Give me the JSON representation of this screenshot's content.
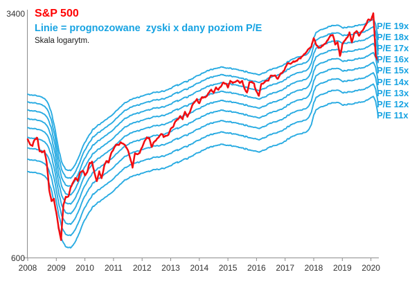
{
  "chart_data": {
    "type": "line",
    "scale": "log",
    "title": "S&P 500",
    "subtitle": "Linie = prognozowane  zyski x dany poziom P/E",
    "note": "Skala logarytm.",
    "ylim": [
      600,
      3400
    ],
    "y_axis_labels": {
      "max": "3400",
      "min": "600"
    },
    "x_tick_labels": [
      "2008",
      "2009",
      "2010",
      "2011",
      "2012",
      "2013",
      "2014",
      "2015",
      "2016",
      "2017",
      "2018",
      "2019",
      "2020"
    ],
    "x_start": "2008-01",
    "x_step_months": 1,
    "pe_levels": [
      19,
      18,
      17,
      16,
      15,
      14,
      13,
      12,
      11
    ],
    "pe_labels": [
      "P/E 19x",
      "P/E 18x",
      "P/E 17x",
      "P/E 16x",
      "P/E 15x",
      "P/E 14x",
      "P/E 13x",
      "P/E 12x",
      "P/E 11x"
    ],
    "legend_position": "right",
    "grid": false,
    "series": [
      {
        "name": "forward_eps_monthly",
        "role": "base-earnings-multiplied-by-pe-levels",
        "values": [
          100,
          100,
          99.5,
          99.5,
          99,
          98.5,
          98,
          97,
          95.5,
          92.5,
          87.5,
          81.5,
          74.5,
          68,
          63,
          60.5,
          59,
          58.5,
          58.5,
          59.5,
          61,
          63.5,
          66,
          69,
          71.5,
          73.5,
          75.5,
          77.5,
          79,
          80,
          81,
          82,
          83,
          84,
          85,
          86,
          87.5,
          89,
          90.5,
          92,
          93.5,
          94.5,
          95.5,
          96.5,
          97,
          97.5,
          98,
          98.5,
          99,
          99.5,
          100,
          100.5,
          101,
          101.5,
          101.5,
          102,
          102.5,
          102.5,
          103,
          103.5,
          104.5,
          105.5,
          106.5,
          107,
          108,
          108.5,
          109.5,
          110,
          111,
          112,
          113,
          114,
          115,
          116,
          117,
          118,
          119,
          119.5,
          120,
          120.5,
          121,
          121.5,
          121.5,
          121,
          121,
          120.5,
          120,
          120,
          119.5,
          119,
          118.5,
          118,
          117.5,
          117,
          116.5,
          116,
          115.5,
          115,
          115.5,
          116.5,
          117.5,
          118.5,
          119.5,
          120.5,
          121,
          121.5,
          122,
          123,
          124.5,
          126,
          127.5,
          128.5,
          129.5,
          130.5,
          131,
          131.5,
          132,
          133,
          135,
          140,
          150,
          155,
          157,
          158.5,
          159.5,
          160.5,
          161.5,
          162.5,
          163,
          163.5,
          163.5,
          162.5,
          161,
          160.5,
          161,
          161.5,
          162,
          162.5,
          163,
          163.5,
          164,
          164.5,
          165.5,
          167,
          169,
          170.5,
          164,
          149
        ]
      },
      {
        "name": "sp500_price_monthly",
        "role": "price",
        "values": [
          1378,
          1331,
          1323,
          1386,
          1400,
          1280,
          1267,
          1283,
          1166,
          969,
          896,
          903,
          826,
          735,
          680,
          873,
          919,
          919,
          987,
          1021,
          1057,
          1036,
          1096,
          1115,
          1074,
          1104,
          1169,
          1187,
          1089,
          1031,
          1102,
          1049,
          1141,
          1183,
          1181,
          1258,
          1286,
          1327,
          1326,
          1364,
          1345,
          1321,
          1292,
          1219,
          1131,
          1253,
          1247,
          1258,
          1312,
          1366,
          1408,
          1398,
          1310,
          1362,
          1379,
          1407,
          1441,
          1412,
          1416,
          1426,
          1498,
          1515,
          1569,
          1598,
          1631,
          1606,
          1686,
          1633,
          1682,
          1757,
          1806,
          1848,
          1783,
          1859,
          1872,
          1884,
          1924,
          1960,
          1931,
          2003,
          1972,
          2018,
          2068,
          2059,
          1995,
          2105,
          2068,
          2086,
          2107,
          2063,
          2104,
          1972,
          1920,
          2079,
          2080,
          2044,
          1940,
          1890,
          2060,
          2065,
          2097,
          2099,
          2174,
          2171,
          2168,
          2126,
          2199,
          2239,
          2279,
          2364,
          2363,
          2384,
          2412,
          2423,
          2470,
          2472,
          2519,
          2575,
          2648,
          2674,
          2824,
          2714,
          2641,
          2648,
          2705,
          2718,
          2816,
          2902,
          2914,
          2712,
          2760,
          2485,
          2704,
          2784,
          2834,
          2946,
          2752,
          2942,
          2980,
          2888,
          2977,
          3038,
          3141,
          3231,
          3226,
          3386,
          2500,
          2400
        ]
      }
    ],
    "colors": {
      "pe_lines": "#29abe2",
      "price_line": "#f20d11",
      "title": "#ff0000",
      "subtitle": "#17a3e2",
      "pe_labels": "#17a3e2",
      "axis": "#8c8c8c",
      "tick_text": "#303030"
    }
  }
}
